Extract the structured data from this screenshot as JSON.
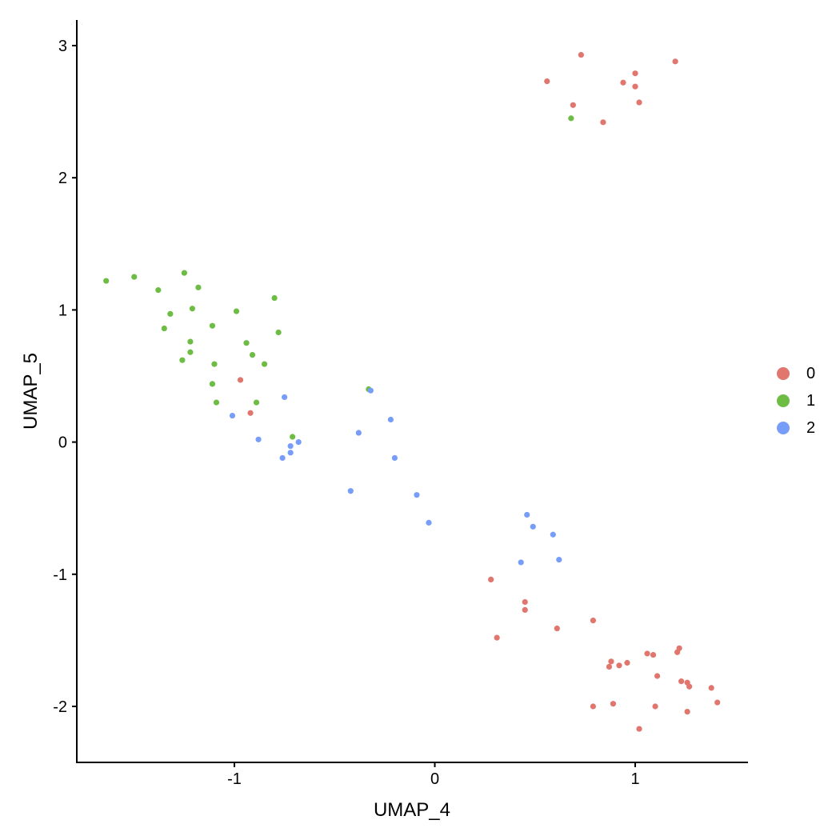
{
  "chart_data": {
    "type": "scatter",
    "title": "",
    "xlabel": "UMAP_4",
    "ylabel": "UMAP_5",
    "xlim": [
      -1.78,
      1.56
    ],
    "ylim": [
      -2.42,
      3.21
    ],
    "x_ticks": [
      -1,
      0,
      1
    ],
    "y_ticks": [
      -2,
      -1,
      0,
      1,
      2,
      3
    ],
    "grid": false,
    "legend_position": "right",
    "legend": [
      {
        "label": "0",
        "color": "#E0766D"
      },
      {
        "label": "1",
        "color": "#6DBD45"
      },
      {
        "label": "2",
        "color": "#779DF9"
      }
    ],
    "series": [
      {
        "name": "0",
        "color": "#E0766D",
        "points": [
          [
            0.73,
            2.93
          ],
          [
            0.56,
            2.73
          ],
          [
            1.0,
            2.79
          ],
          [
            1.2,
            2.88
          ],
          [
            0.94,
            2.72
          ],
          [
            1.0,
            2.69
          ],
          [
            1.02,
            2.57
          ],
          [
            0.69,
            2.55
          ],
          [
            0.84,
            2.42
          ],
          [
            -0.97,
            0.47
          ],
          [
            -0.92,
            0.22
          ],
          [
            0.28,
            -1.04
          ],
          [
            0.45,
            -1.21
          ],
          [
            0.45,
            -1.27
          ],
          [
            0.61,
            -1.41
          ],
          [
            0.31,
            -1.48
          ],
          [
            0.79,
            -1.35
          ],
          [
            1.06,
            -1.6
          ],
          [
            1.09,
            -1.61
          ],
          [
            1.22,
            -1.56
          ],
          [
            1.21,
            -1.59
          ],
          [
            0.88,
            -1.66
          ],
          [
            0.87,
            -1.7
          ],
          [
            0.92,
            -1.69
          ],
          [
            0.96,
            -1.67
          ],
          [
            1.11,
            -1.77
          ],
          [
            1.23,
            -1.81
          ],
          [
            1.26,
            -1.82
          ],
          [
            1.27,
            -1.85
          ],
          [
            1.38,
            -1.86
          ],
          [
            1.41,
            -1.97
          ],
          [
            0.79,
            -2.0
          ],
          [
            0.89,
            -1.98
          ],
          [
            1.1,
            -2.0
          ],
          [
            1.26,
            -2.04
          ],
          [
            1.02,
            -2.17
          ]
        ]
      },
      {
        "name": "1",
        "color": "#6DBD45",
        "points": [
          [
            0.68,
            2.45
          ],
          [
            -1.64,
            1.22
          ],
          [
            -1.5,
            1.25
          ],
          [
            -1.38,
            1.15
          ],
          [
            -1.25,
            1.28
          ],
          [
            -1.18,
            1.17
          ],
          [
            -1.32,
            0.97
          ],
          [
            -1.21,
            1.01
          ],
          [
            -0.99,
            0.99
          ],
          [
            -0.8,
            1.09
          ],
          [
            -1.35,
            0.86
          ],
          [
            -1.11,
            0.88
          ],
          [
            -0.78,
            0.83
          ],
          [
            -1.22,
            0.76
          ],
          [
            -0.94,
            0.75
          ],
          [
            -1.22,
            0.68
          ],
          [
            -0.91,
            0.66
          ],
          [
            -1.26,
            0.62
          ],
          [
            -1.1,
            0.59
          ],
          [
            -0.85,
            0.59
          ],
          [
            -1.11,
            0.44
          ],
          [
            -1.09,
            0.3
          ],
          [
            -0.89,
            0.3
          ],
          [
            -0.33,
            0.4
          ],
          [
            -0.71,
            0.04
          ]
        ]
      },
      {
        "name": "2",
        "color": "#779DF9",
        "points": [
          [
            -0.75,
            0.34
          ],
          [
            -1.01,
            0.2
          ],
          [
            -0.88,
            0.02
          ],
          [
            -0.68,
            0.0
          ],
          [
            -0.72,
            -0.03
          ],
          [
            -0.76,
            -0.12
          ],
          [
            -0.72,
            -0.08
          ],
          [
            -0.32,
            0.39
          ],
          [
            -0.22,
            0.17
          ],
          [
            -0.38,
            0.07
          ],
          [
            -0.2,
            -0.12
          ],
          [
            -0.42,
            -0.37
          ],
          [
            -0.09,
            -0.4
          ],
          [
            -0.03,
            -0.61
          ],
          [
            0.46,
            -0.55
          ],
          [
            0.49,
            -0.64
          ],
          [
            0.59,
            -0.7
          ],
          [
            0.43,
            -0.91
          ],
          [
            0.62,
            -0.89
          ]
        ]
      }
    ]
  }
}
